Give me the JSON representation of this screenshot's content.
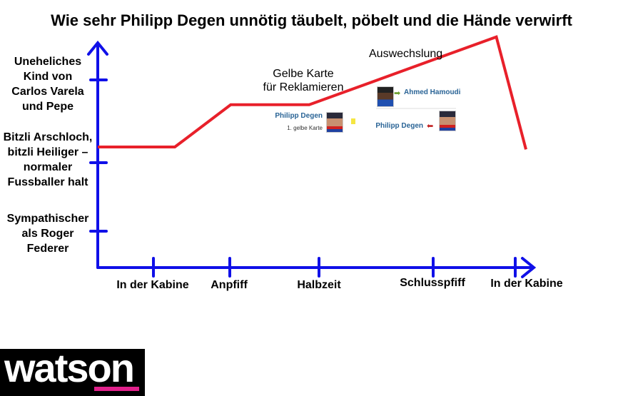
{
  "chart_data": {
    "type": "line",
    "title": "Wie sehr Philipp Degen unnötig täubelt, pöbelt und die Hände verwirft",
    "x_ticks": [
      "In der Kabine",
      "Anpfiff",
      "Halbzeit",
      "Schlusspfiff",
      "In der Kabine"
    ],
    "y_ticks": [
      "Sympathischer als Roger Federer",
      "Bitzli Arschloch, bitzli Heiliger – normaler Fussballer halt",
      "Uneheliches Kind von Carlos Varela und Pepe"
    ],
    "y_tick_lines": [
      [
        "Sympathischer",
        "als Roger",
        "Federer"
      ],
      [
        "Bitzli Arschloch,",
        "bitzli Heiliger –",
        "normaler",
        "Fussballer halt"
      ],
      [
        "Uneheliches",
        "Kind von",
        "Carlos Varela",
        "und Pepe"
      ]
    ],
    "series": [
      {
        "name": "Degen",
        "color": "#e8202a",
        "x": [
          0,
          1.28,
          2.01,
          2.89,
          4.77,
          5.13
        ],
        "y": [
          2.19,
          2.19,
          2.7,
          2.7,
          3.52,
          2.16
        ]
      }
    ],
    "annotations": {
      "yellow_card": [
        "Gelbe Karte",
        "für Reklamieren"
      ],
      "substitution": "Auswechslung"
    },
    "axis_color": "#1010e8"
  },
  "inset": {
    "player_in": "Ahmed Hamoudi",
    "player_out": "Philipp Degen",
    "card_player": "Philipp Degen",
    "card_text": "1. gelbe Karte"
  },
  "logo": "watson"
}
